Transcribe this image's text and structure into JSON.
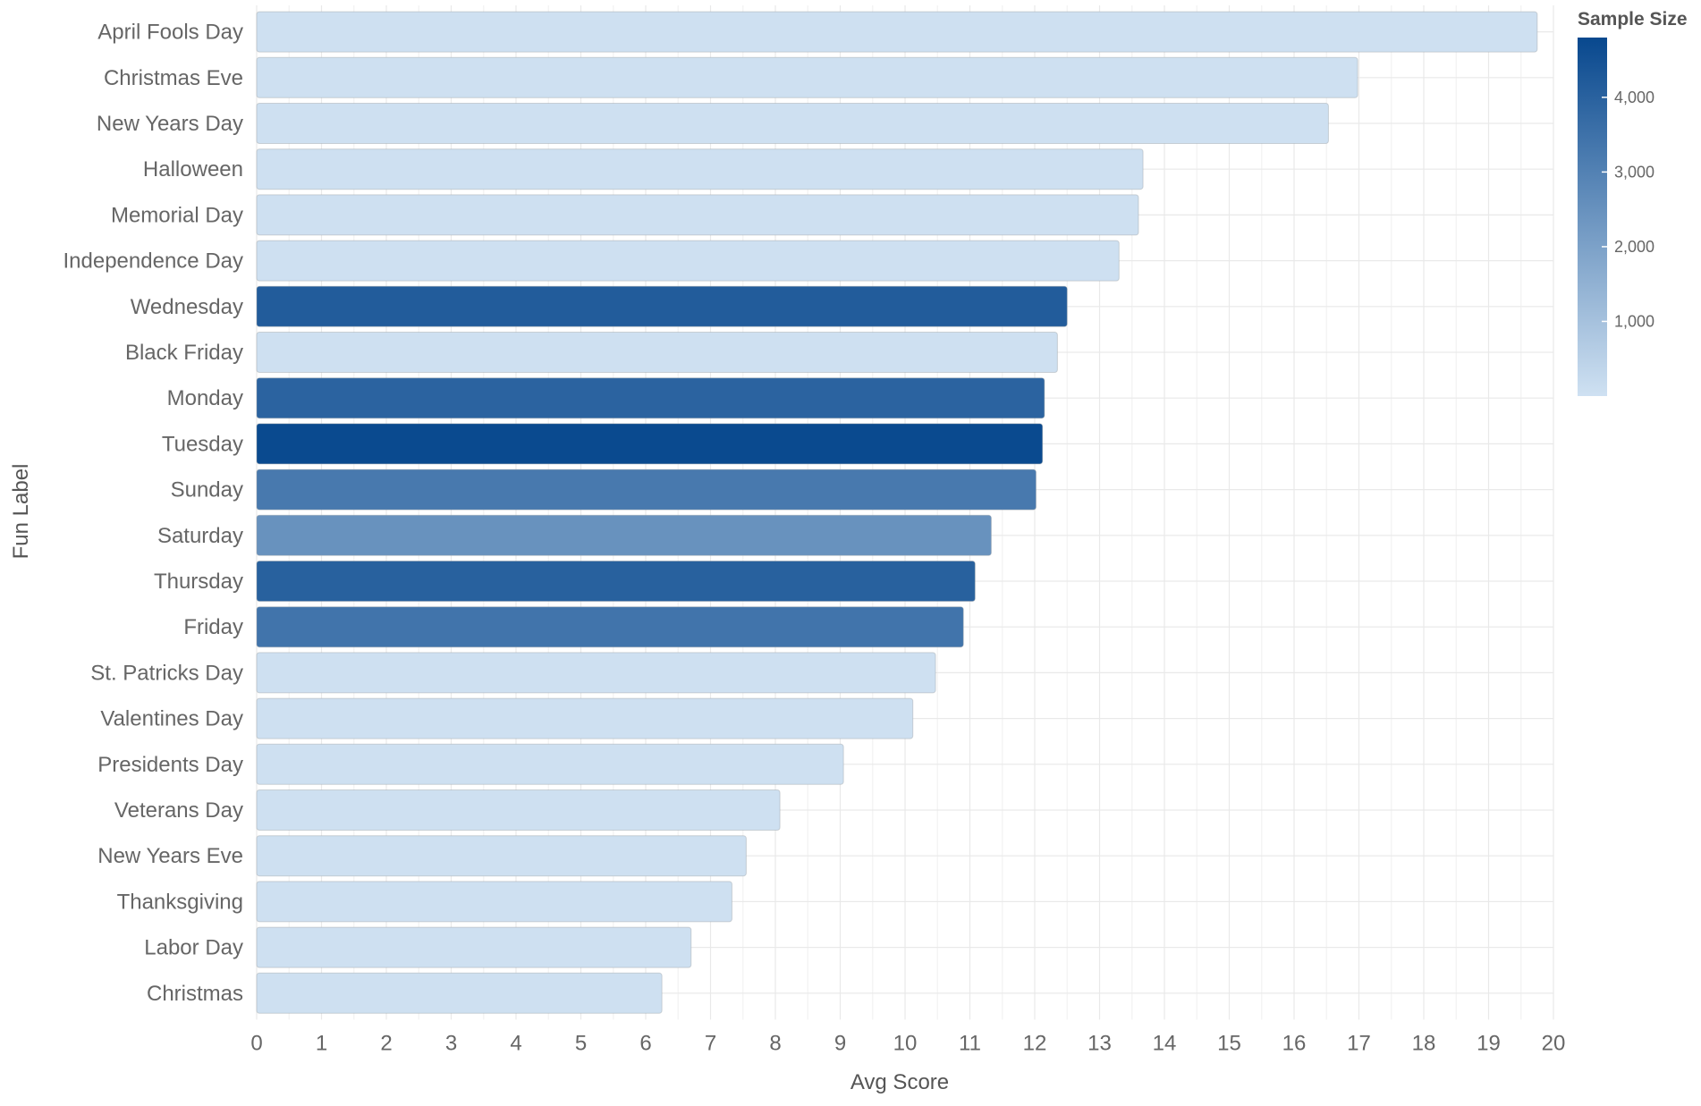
{
  "chart_data": {
    "type": "bar",
    "orientation": "horizontal",
    "xlabel": "Avg Score",
    "ylabel": "Fun Label",
    "xlim": [
      0,
      20
    ],
    "x_ticks": [
      0,
      1,
      2,
      3,
      4,
      5,
      6,
      7,
      8,
      9,
      10,
      11,
      12,
      13,
      14,
      15,
      16,
      17,
      18,
      19,
      20
    ],
    "x_tick_labels": [
      "0",
      "1",
      "2",
      "3",
      "4",
      "5",
      "6",
      "7",
      "8",
      "9",
      "10",
      "11",
      "12",
      "13",
      "14",
      "15",
      "16",
      "17",
      "18",
      "19",
      "20"
    ],
    "grid": true,
    "categories": [
      "April Fools Day",
      "Christmas Eve",
      "New Years Day",
      "Halloween",
      "Memorial Day",
      "Independence Day",
      "Wednesday",
      "Black Friday",
      "Monday",
      "Tuesday",
      "Sunday",
      "Saturday",
      "Thursday",
      "Friday",
      "St. Patricks Day",
      "Valentines Day",
      "Presidents Day",
      "Veterans Day",
      "New Years Eve",
      "Thanksgiving",
      "Labor Day",
      "Christmas"
    ],
    "values": [
      19.75,
      16.98,
      16.53,
      13.67,
      13.6,
      13.3,
      12.5,
      12.35,
      12.15,
      12.12,
      12.02,
      11.33,
      11.08,
      10.9,
      10.47,
      10.12,
      9.05,
      8.07,
      7.55,
      7.33,
      6.7,
      6.25
    ],
    "sample_size": [
      25,
      25,
      25,
      25,
      25,
      25,
      4180,
      25,
      3950,
      4750,
      3250,
      2480,
      4020,
      3420,
      25,
      25,
      25,
      25,
      25,
      25,
      25,
      25
    ],
    "color_legend": {
      "title": "Sample Size",
      "placement": "top-right",
      "min": 0,
      "max": 4800,
      "ticks": [
        1000,
        2000,
        3000,
        4000
      ],
      "tick_labels": [
        "1,000",
        "2,000",
        "3,000",
        "4,000"
      ],
      "color_low": "#cfe1f2",
      "color_high": "#08488e"
    }
  }
}
